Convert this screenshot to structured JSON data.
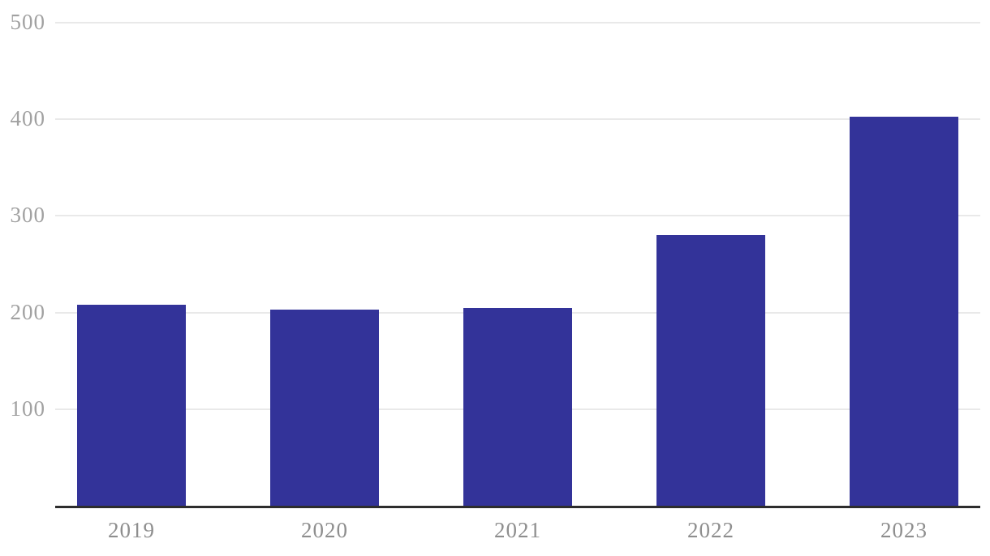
{
  "chart_data": {
    "type": "bar",
    "title": "",
    "xlabel": "",
    "ylabel": "",
    "categories": [
      "2019",
      "2020",
      "2021",
      "2022",
      "2023"
    ],
    "values": [
      208,
      203,
      205,
      280,
      403
    ],
    "ylim": [
      0,
      500
    ],
    "yticks": [
      100,
      200,
      300,
      400,
      500
    ],
    "grid": true,
    "legend": false,
    "colors": {
      "bar": "#333399",
      "gridline": "#e9e9e9",
      "axis_line": "#2d2d2d",
      "y_tick_label": "#a1a1a1",
      "x_tick_label": "#8e8e8e",
      "background": "#ffffff"
    }
  }
}
